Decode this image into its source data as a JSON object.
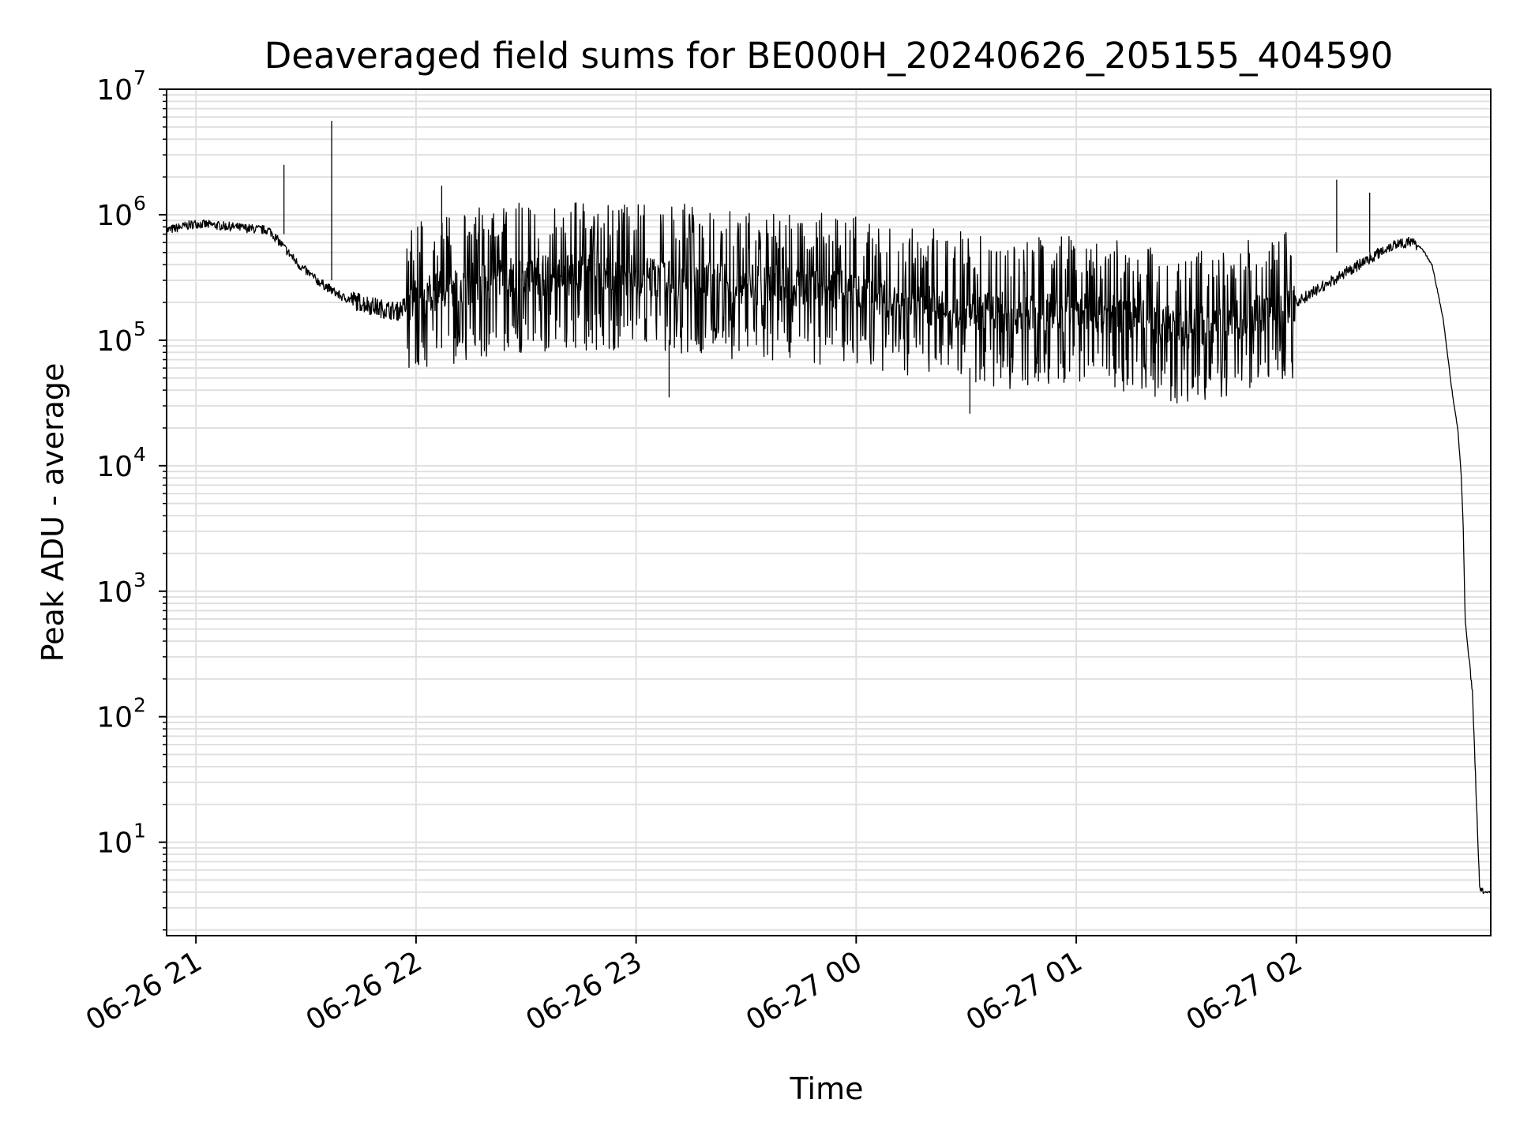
{
  "chart_data": {
    "type": "line",
    "title": "Deaveraged field sums for BE000H_20240626_205155_404590",
    "xlabel": "Time",
    "ylabel": "Peak ADU - average",
    "x_tick_labels": [
      "06-26 21",
      "06-26 22",
      "06-26 23",
      "06-27 00",
      "06-27 01",
      "06-27 02"
    ],
    "y_scale": "log",
    "y_tick_base": "10",
    "y_tick_exponents": [
      "1",
      "2",
      "3",
      "4",
      "5",
      "6",
      "7"
    ],
    "xlim": [
      "2024-06-26 20:52",
      "2024-06-27 02:53"
    ],
    "ylim": [
      1.8,
      10000000
    ],
    "grid": true,
    "line_color": "#000000",
    "grid_color": "#e0e0e0",
    "series": [
      {
        "x": [
          "2024-06-26 20:52",
          "2024-06-26 21:00",
          "2024-06-26 21:10",
          "2024-06-26 21:20",
          "2024-06-26 21:24",
          "2024-06-26 21:28",
          "2024-06-26 21:33",
          "2024-06-26 21:37",
          "2024-06-26 21:40",
          "2024-06-26 21:45",
          "2024-06-26 21:50",
          "2024-06-26 21:55",
          "2024-06-26 22:00",
          "2024-06-26 22:10",
          "2024-06-26 22:20",
          "2024-06-26 22:30",
          "2024-06-26 22:40",
          "2024-06-26 22:50",
          "2024-06-26 23:00",
          "2024-06-26 23:15",
          "2024-06-26 23:30",
          "2024-06-26 23:45",
          "2024-06-27 00:00",
          "2024-06-27 00:15",
          "2024-06-27 00:30",
          "2024-06-27 00:45",
          "2024-06-27 01:00",
          "2024-06-27 01:15",
          "2024-06-27 01:30",
          "2024-06-27 01:45",
          "2024-06-27 02:00",
          "2024-06-27 02:10",
          "2024-06-27 02:20",
          "2024-06-27 02:25",
          "2024-06-27 02:28",
          "2024-06-27 02:31",
          "2024-06-27 02:34",
          "2024-06-27 02:37",
          "2024-06-27 02:40",
          "2024-06-27 02:42",
          "2024-06-27 02:43",
          "2024-06-27 02:44",
          "2024-06-27 02:45",
          "2024-06-27 02:45.5",
          "2024-06-27 02:46",
          "2024-06-27 02:48",
          "2024-06-27 02:50",
          "2024-06-27 02:53"
        ],
        "y": [
          750000,
          850000,
          800000,
          750000,
          550000,
          400000,
          300000,
          250000,
          220000,
          200000,
          180000,
          170000,
          220000,
          260000,
          300000,
          320000,
          330000,
          330000,
          330000,
          300000,
          280000,
          270000,
          240000,
          200000,
          180000,
          160000,
          170000,
          150000,
          120000,
          150000,
          200000,
          300000,
          450000,
          550000,
          600000,
          600000,
          550000,
          400000,
          150000,
          50000,
          30000,
          20000,
          8000,
          3000,
          600,
          150,
          4,
          4
        ]
      }
    ]
  }
}
